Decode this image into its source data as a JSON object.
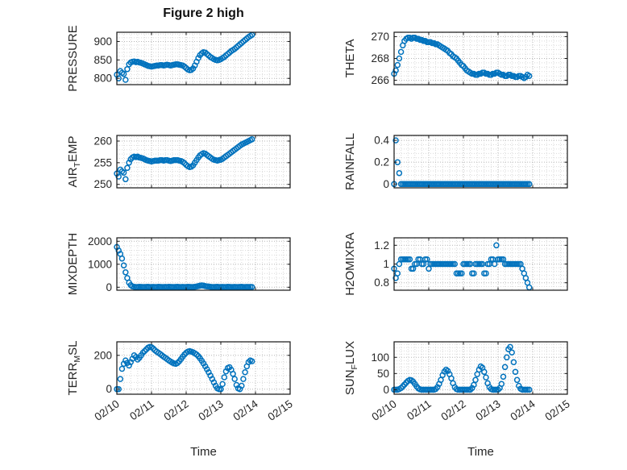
{
  "title": "Figure 2 high",
  "xlabel": "Time",
  "marker_color": "#0072BD",
  "x_ticks": [
    0,
    1,
    2,
    3,
    4,
    5
  ],
  "x_tick_labels": [
    "02/10",
    "02/11",
    "02/12",
    "02/13",
    "02/14",
    "02/15"
  ],
  "xlim": [
    0,
    5
  ],
  "x_shared": [
    0,
    0.05,
    0.1,
    0.15,
    0.2,
    0.25,
    0.3,
    0.35,
    0.4,
    0.45,
    0.5,
    0.55,
    0.6,
    0.65,
    0.7,
    0.75,
    0.8,
    0.85,
    0.9,
    0.95,
    1,
    1.05,
    1.1,
    1.15,
    1.2,
    1.25,
    1.3,
    1.35,
    1.4,
    1.45,
    1.5,
    1.55,
    1.6,
    1.65,
    1.7,
    1.75,
    1.8,
    1.85,
    1.9,
    1.95,
    2,
    2.05,
    2.1,
    2.15,
    2.2,
    2.25,
    2.3,
    2.35,
    2.4,
    2.45,
    2.5,
    2.55,
    2.6,
    2.65,
    2.7,
    2.75,
    2.8,
    2.85,
    2.9,
    2.95,
    3,
    3.05,
    3.1,
    3.15,
    3.2,
    3.25,
    3.3,
    3.35,
    3.4,
    3.45,
    3.5,
    3.55,
    3.6,
    3.65,
    3.7,
    3.75,
    3.8,
    3.85,
    3.9
  ],
  "chart_data": [
    {
      "type": "scatter",
      "name": "pressure",
      "ylabel_parts": [
        {
          "text": "PRESSURE"
        }
      ],
      "yticks": [
        800,
        850,
        900
      ],
      "ylim": [
        783,
        925
      ],
      "x": "shared",
      "y": [
        810,
        800,
        820,
        815,
        812,
        796,
        825,
        838,
        843,
        845,
        846,
        844,
        845,
        843,
        842,
        840,
        838,
        836,
        834,
        833,
        832,
        833,
        834,
        835,
        835,
        836,
        836,
        835,
        836,
        837,
        836,
        835,
        836,
        837,
        838,
        838,
        837,
        836,
        835,
        832,
        828,
        824,
        822,
        823,
        827,
        835,
        845,
        855,
        863,
        868,
        871,
        870,
        866,
        862,
        858,
        855,
        852,
        850,
        849,
        850,
        852,
        855,
        858,
        862,
        866,
        870,
        874,
        877,
        880,
        884,
        888,
        892,
        896,
        900,
        904,
        908,
        912,
        915,
        918
      ]
    },
    {
      "type": "scatter",
      "name": "theta",
      "ylabel_parts": [
        {
          "text": "THETA"
        }
      ],
      "yticks": [
        266,
        268,
        270
      ],
      "ylim": [
        265.6,
        270.4
      ],
      "x": "shared",
      "y": [
        266.6,
        266.9,
        267.4,
        268,
        268.6,
        269.2,
        269.6,
        269.8,
        269.9,
        269.9,
        269.8,
        269.9,
        269.9,
        269.8,
        269.8,
        269.7,
        269.7,
        269.6,
        269.6,
        269.5,
        269.5,
        269.5,
        269.4,
        269.4,
        269.3,
        269.3,
        269.2,
        269.1,
        269,
        268.9,
        268.8,
        268.7,
        268.5,
        268.4,
        268.2,
        268.1,
        268,
        267.8,
        267.6,
        267.4,
        267.3,
        267.1,
        266.9,
        266.8,
        266.7,
        266.6,
        266.6,
        266.5,
        266.5,
        266.6,
        266.6,
        266.7,
        266.7,
        266.6,
        266.6,
        266.5,
        266.5,
        266.6,
        266.6,
        266.7,
        266.7,
        266.6,
        266.5,
        266.5,
        266.4,
        266.4,
        266.5,
        266.5,
        266.4,
        266.4,
        266.3,
        266.3,
        266.4,
        266.4,
        266.3,
        266.2,
        266.3,
        266.5,
        266.4
      ]
    },
    {
      "type": "scatter",
      "name": "air-temp",
      "ylabel_parts": [
        {
          "text": "AIR"
        },
        {
          "text": "T",
          "sub": true
        },
        {
          "text": "EMP"
        }
      ],
      "yticks": [
        250,
        255,
        260
      ],
      "ylim": [
        249.2,
        261.3
      ],
      "x": "shared",
      "y": [
        252.5,
        251.8,
        253.4,
        253,
        252.7,
        251.2,
        253.8,
        255,
        255.8,
        256.2,
        256.4,
        256.3,
        256.4,
        256.2,
        256.1,
        256,
        255.8,
        255.6,
        255.5,
        255.4,
        255.3,
        255.4,
        255.5,
        255.5,
        255.5,
        255.6,
        255.6,
        255.5,
        255.6,
        255.6,
        255.5,
        255.4,
        255.5,
        255.6,
        255.6,
        255.6,
        255.5,
        255.4,
        255.2,
        254.9,
        254.5,
        254.2,
        254,
        254.1,
        254.4,
        255,
        255.6,
        256.2,
        256.7,
        257,
        257.2,
        257.1,
        256.8,
        256.5,
        256.2,
        255.9,
        255.7,
        255.6,
        255.5,
        255.6,
        255.7,
        255.9,
        256.2,
        256.5,
        256.8,
        257.1,
        257.4,
        257.7,
        258,
        258.3,
        258.6,
        258.9,
        259.2,
        259.4,
        259.6,
        259.8,
        260,
        260.2,
        260.4
      ]
    },
    {
      "type": "scatter",
      "name": "rainfall",
      "ylabel_parts": [
        {
          "text": "RAINFALL"
        }
      ],
      "yticks": [
        0,
        0.2,
        0.4
      ],
      "ylim": [
        -0.035,
        0.445
      ],
      "x": "shared",
      "y": [
        0,
        0.4,
        0.2,
        0.1,
        0,
        0,
        0,
        0,
        0,
        0,
        0,
        0,
        0,
        0,
        0,
        0,
        0,
        0,
        0,
        0,
        0,
        0,
        0,
        0,
        0,
        0,
        0,
        0,
        0,
        0,
        0,
        0,
        0,
        0,
        0,
        0,
        0,
        0,
        0,
        0,
        0,
        0,
        0,
        0,
        0,
        0,
        0,
        0,
        0,
        0,
        0,
        0,
        0,
        0,
        0,
        0,
        0,
        0,
        0,
        0,
        0,
        0,
        0,
        0,
        0,
        0,
        0,
        0,
        0,
        0,
        0,
        0,
        0,
        0,
        0,
        0,
        0,
        0,
        0
      ]
    },
    {
      "type": "scatter",
      "name": "mixdepth",
      "ylabel_parts": [
        {
          "text": "MIXDEPTH"
        }
      ],
      "yticks": [
        0,
        1000,
        2000
      ],
      "ylim": [
        -130,
        2150
      ],
      "x": "shared",
      "y": [
        1750,
        1600,
        1450,
        1250,
        950,
        650,
        400,
        200,
        90,
        40,
        20,
        10,
        10,
        20,
        15,
        10,
        10,
        15,
        20,
        10,
        10,
        15,
        10,
        10,
        20,
        15,
        10,
        10,
        15,
        10,
        20,
        15,
        10,
        10,
        15,
        20,
        10,
        10,
        15,
        10,
        10,
        20,
        15,
        10,
        10,
        20,
        30,
        50,
        70,
        80,
        70,
        50,
        40,
        30,
        20,
        10,
        10,
        15,
        20,
        10,
        10,
        15,
        10,
        10,
        20,
        15,
        10,
        10,
        15,
        10,
        10,
        15,
        20,
        10,
        10,
        15,
        10,
        15,
        10
      ]
    },
    {
      "type": "scatter",
      "name": "h2omixra",
      "ylabel_parts": [
        {
          "text": "H2OMIXRA"
        }
      ],
      "yticks": [
        0.8,
        1,
        1.2
      ],
      "ylim": [
        0.72,
        1.28
      ],
      "x": "shared",
      "y": [
        0.95,
        0.85,
        0.9,
        1,
        1.05,
        1.05,
        1.05,
        1.05,
        1.05,
        1.05,
        0.95,
        0.95,
        1,
        1,
        1.05,
        1.05,
        1,
        1,
        1.05,
        1.05,
        0.95,
        1,
        1,
        1,
        1,
        1,
        1,
        1,
        1,
        1,
        1,
        1,
        1,
        1,
        1,
        1,
        0.9,
        0.9,
        0.9,
        0.9,
        1,
        1,
        1,
        1,
        1,
        0.9,
        0.9,
        1,
        1,
        1,
        1,
        1,
        0.9,
        0.9,
        1,
        1,
        1.05,
        1.05,
        1,
        1.2,
        1.05,
        1.05,
        1.05,
        1.05,
        1,
        1,
        1,
        1,
        1,
        1,
        1,
        1,
        1,
        1,
        0.95,
        0.9,
        0.85,
        0.8,
        0.75
      ]
    },
    {
      "type": "scatter",
      "name": "terr-msl",
      "ylabel_parts": [
        {
          "text": "TERR"
        },
        {
          "text": "M",
          "sub": true
        },
        {
          "text": "SL"
        }
      ],
      "yticks": [
        0,
        200
      ],
      "ylim": [
        -30,
        280
      ],
      "x": "shared",
      "y": [
        0,
        0,
        60,
        120,
        150,
        170,
        155,
        140,
        160,
        180,
        200,
        190,
        175,
        185,
        200,
        215,
        225,
        235,
        245,
        250,
        248,
        240,
        230,
        222,
        215,
        208,
        200,
        192,
        185,
        178,
        170,
        163,
        157,
        152,
        150,
        155,
        165,
        178,
        192,
        205,
        215,
        222,
        225,
        222,
        218,
        212,
        205,
        195,
        182,
        168,
        152,
        135,
        118,
        100,
        80,
        60,
        40,
        20,
        5,
        0,
        0,
        30,
        70,
        105,
        125,
        130,
        115,
        90,
        60,
        25,
        5,
        0,
        20,
        60,
        100,
        135,
        160,
        170,
        165
      ]
    },
    {
      "type": "scatter",
      "name": "sun-flux",
      "ylabel_parts": [
        {
          "text": "SUN"
        },
        {
          "text": "F",
          "sub": true
        },
        {
          "text": "LUX"
        }
      ],
      "yticks": [
        0,
        50,
        100
      ],
      "ylim": [
        -14,
        148
      ],
      "x": "shared",
      "y": [
        0,
        0,
        0,
        2,
        5,
        10,
        16,
        22,
        27,
        30,
        29,
        25,
        18,
        10,
        4,
        1,
        0,
        0,
        0,
        0,
        0,
        0,
        0,
        0,
        2,
        8,
        18,
        30,
        45,
        56,
        62,
        58,
        48,
        35,
        20,
        8,
        2,
        0,
        0,
        0,
        0,
        0,
        0,
        0,
        0,
        5,
        15,
        30,
        48,
        62,
        72,
        68,
        55,
        38,
        20,
        8,
        2,
        0,
        0,
        0,
        0,
        5,
        18,
        40,
        70,
        100,
        125,
        132,
        115,
        85,
        55,
        30,
        12,
        3,
        0,
        0,
        0,
        0,
        0
      ]
    }
  ]
}
